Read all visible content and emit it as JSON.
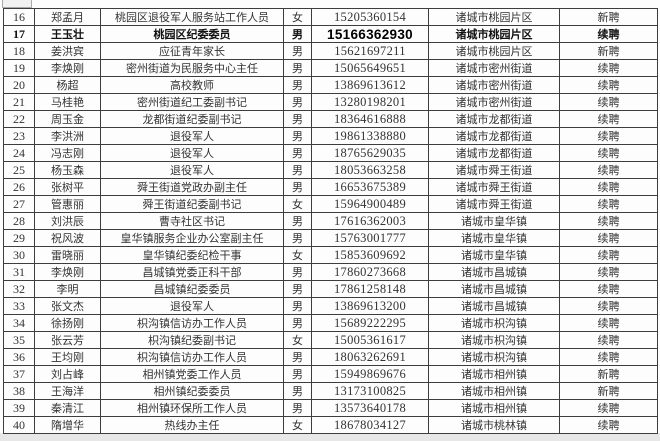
{
  "page": {
    "background": "#e7e7e7",
    "sheet_background": "#fdfdfd",
    "table_border_color": "#3d3d3d",
    "text_color": "#333333"
  },
  "highlight_row_no": "17",
  "rows": [
    {
      "no": "16",
      "name": "郑孟月",
      "title": "桃园区退役军人服务站工作人员",
      "gender": "女",
      "phone": "15205360154",
      "district": "诸城市桃园片区",
      "status": "新聘"
    },
    {
      "no": "17",
      "name": "王玉壮",
      "title": "桃园区纪委委员",
      "gender": "男",
      "phone": "15166362930",
      "district": "诸城市桃园片区",
      "status": "续聘"
    },
    {
      "no": "18",
      "name": "姜洪宾",
      "title": "应征青年家长",
      "gender": "男",
      "phone": "15621697211",
      "district": "诸城市桃园片区",
      "status": "新聘"
    },
    {
      "no": "19",
      "name": "李焕刚",
      "title": "密州街道为民服务中心主任",
      "gender": "男",
      "phone": "15065649651",
      "district": "诸城市密州街道",
      "status": "续聘"
    },
    {
      "no": "20",
      "name": "杨超",
      "title": "高校教师",
      "gender": "男",
      "phone": "13869613612",
      "district": "诸城市密州街道",
      "status": "续聘"
    },
    {
      "no": "21",
      "name": "马桂艳",
      "title": "密州街道纪工委副书记",
      "gender": "男",
      "phone": "13280198201",
      "district": "诸城市密州街道",
      "status": "续聘"
    },
    {
      "no": "22",
      "name": "周玉金",
      "title": "龙都街道纪委副书记",
      "gender": "男",
      "phone": "18364616888",
      "district": "诸城市龙都街道",
      "status": "续聘"
    },
    {
      "no": "23",
      "name": "李洪洲",
      "title": "退役军人",
      "gender": "男",
      "phone": "19861338880",
      "district": "诸城市龙都街道",
      "status": "续聘"
    },
    {
      "no": "24",
      "name": "冯志刚",
      "title": "退役军人",
      "gender": "男",
      "phone": "18765629035",
      "district": "诸城市龙都街道",
      "status": "续聘"
    },
    {
      "no": "25",
      "name": "杨玉森",
      "title": "退役军人",
      "gender": "男",
      "phone": "18053663258",
      "district": "诸城市舜王街道",
      "status": "续聘"
    },
    {
      "no": "26",
      "name": "张树平",
      "title": "舜王街道党政办副主任",
      "gender": "男",
      "phone": "16653675389",
      "district": "诸城市舜王街道",
      "status": "续聘"
    },
    {
      "no": "27",
      "name": "管惠丽",
      "title": "舜王街道纪委副书记",
      "gender": "女",
      "phone": "15964900489",
      "district": "诸城市舜王街道",
      "status": "续聘"
    },
    {
      "no": "28",
      "name": "刘洪辰",
      "title": "曹寺社区书记",
      "gender": "男",
      "phone": "17616362003",
      "district": "诸城市皇华镇",
      "status": "续聘"
    },
    {
      "no": "29",
      "name": "祝风波",
      "title": "皇华镇服务企业办公室副主任",
      "gender": "男",
      "phone": "15763001777",
      "district": "诸城市皇华镇",
      "status": "续聘"
    },
    {
      "no": "30",
      "name": "雷晓丽",
      "title": "皇华镇纪委纪检干事",
      "gender": "女",
      "phone": "15853609692",
      "district": "诸城市皇华镇",
      "status": "续聘"
    },
    {
      "no": "31",
      "name": "李焕刚",
      "title": "昌城镇党委正科干部",
      "gender": "男",
      "phone": "17860273668",
      "district": "诸城市昌城镇",
      "status": "续聘"
    },
    {
      "no": "32",
      "name": "李明",
      "title": "昌城镇纪委委员",
      "gender": "男",
      "phone": "17861258148",
      "district": "诸城市昌城镇",
      "status": "续聘"
    },
    {
      "no": "33",
      "name": "张文杰",
      "title": "退役军人",
      "gender": "男",
      "phone": "13869613200",
      "district": "诸城市昌城镇",
      "status": "续聘"
    },
    {
      "no": "34",
      "name": "徐扬刚",
      "title": "枳沟镇信访办工作人员",
      "gender": "男",
      "phone": "15689222295",
      "district": "诸城市枳沟镇",
      "status": "续聘"
    },
    {
      "no": "35",
      "name": "张云芳",
      "title": "枳沟镇纪委副书记",
      "gender": "女",
      "phone": "15005361617",
      "district": "诸城市枳沟镇",
      "status": "续聘"
    },
    {
      "no": "36",
      "name": "王均刚",
      "title": "枳沟镇信访办工作人员",
      "gender": "男",
      "phone": "18063262691",
      "district": "诸城市枳沟镇",
      "status": "续聘"
    },
    {
      "no": "37",
      "name": "刘占峰",
      "title": "相州镇党委工作人员",
      "gender": "男",
      "phone": "15949869676",
      "district": "诸城市相州镇",
      "status": "新聘"
    },
    {
      "no": "38",
      "name": "王海洋",
      "title": "相州镇纪委委员",
      "gender": "男",
      "phone": "13173100825",
      "district": "诸城市相州镇",
      "status": "新聘"
    },
    {
      "no": "39",
      "name": "秦清江",
      "title": "相州镇环保所工作人员",
      "gender": "男",
      "phone": "13573640178",
      "district": "诸城市相州镇",
      "status": "续聘"
    },
    {
      "no": "40",
      "name": "隋增华",
      "title": "热线办主任",
      "gender": "女",
      "phone": "18678034127",
      "district": "诸城市桃林镇",
      "status": "续聘"
    }
  ]
}
